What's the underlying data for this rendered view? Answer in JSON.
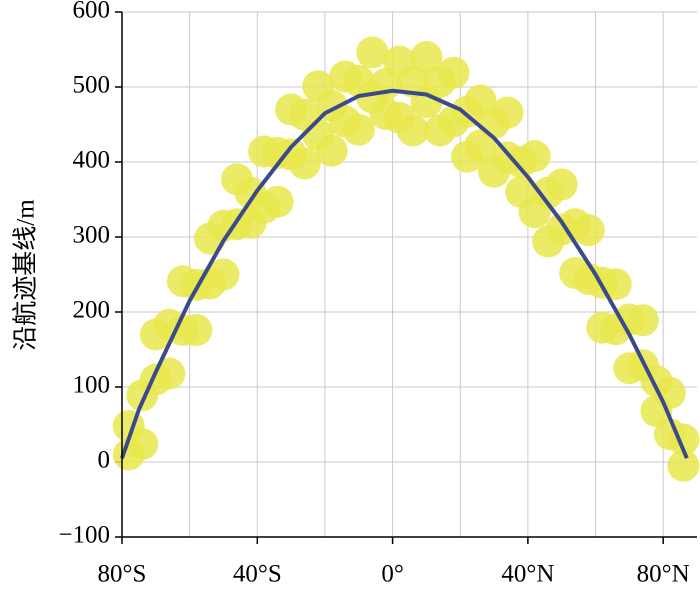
{
  "chart_data": {
    "type": "scatter",
    "ylabel": "沿航迹基线/m",
    "xlim": [
      -80,
      90
    ],
    "xticks": [
      {
        "value": -80,
        "label": "80°S"
      },
      {
        "value": -60,
        "label": null
      },
      {
        "value": -40,
        "label": "40°S"
      },
      {
        "value": -20,
        "label": null
      },
      {
        "value": 0,
        "label": "0°"
      },
      {
        "value": 20,
        "label": null
      },
      {
        "value": 40,
        "label": "40°N"
      },
      {
        "value": 60,
        "label": null
      },
      {
        "value": 80,
        "label": "80°N"
      }
    ],
    "ylim": [
      -100,
      600
    ],
    "yticks": [
      {
        "value": -100,
        "label": "−100"
      },
      0,
      100,
      200,
      300,
      400,
      500,
      600
    ],
    "grid": true,
    "series": [
      {
        "type": "scatter",
        "color": "#e9e84c",
        "x": [
          -78,
          -78,
          -74,
          -74,
          -70,
          -70,
          -66,
          -66,
          -62,
          -62,
          -58,
          -58,
          -54,
          -54,
          -50,
          -50,
          -46,
          -46,
          -42,
          -42,
          -38,
          -38,
          -34,
          -34,
          -30,
          -30,
          -26,
          -26,
          -22,
          -22,
          -18,
          -18,
          -14,
          -14,
          -10,
          -10,
          -6,
          -6,
          -2,
          -2,
          2,
          2,
          6,
          6,
          10,
          10,
          14,
          14,
          18,
          18,
          22,
          22,
          26,
          26,
          30,
          30,
          34,
          34,
          38,
          38,
          42,
          42,
          46,
          46,
          50,
          50,
          54,
          54,
          58,
          58,
          62,
          62,
          66,
          66,
          70,
          70,
          74,
          74,
          78,
          78,
          82,
          82,
          86,
          86
        ],
        "values": [
          48,
          10,
          89,
          24,
          170,
          110,
          183,
          118,
          176,
          241,
          236,
          176,
          298,
          238,
          250,
          315,
          377,
          317,
          359,
          319,
          414,
          339,
          412,
          347,
          470,
          410,
          463,
          398,
          436,
          501,
          475,
          415,
          514,
          454,
          443,
          508,
          546,
          486,
          504,
          464,
          534,
          459,
          507,
          442,
          540,
          480,
          507,
          442,
          454,
          519,
          467,
          407,
          482,
          422,
          387,
          452,
          466,
          406,
          400,
          360,
          408,
          333,
          359,
          294,
          370,
          310,
          317,
          252,
          244,
          309,
          239,
          179,
          237,
          177,
          125,
          190,
          189,
          129,
          108,
          68,
          92,
          37,
          30,
          -5
        ]
      },
      {
        "type": "line",
        "color": "#3b4a8c",
        "x": [
          -80,
          -75,
          -70,
          -60,
          -50,
          -40,
          -30,
          -20,
          -10,
          0,
          10,
          20,
          30,
          40,
          50,
          60,
          70,
          80,
          87
        ],
        "values": [
          5,
          70,
          120,
          215,
          295,
          362,
          420,
          465,
          488,
          495,
          490,
          470,
          432,
          380,
          320,
          250,
          170,
          80,
          5
        ]
      }
    ]
  }
}
